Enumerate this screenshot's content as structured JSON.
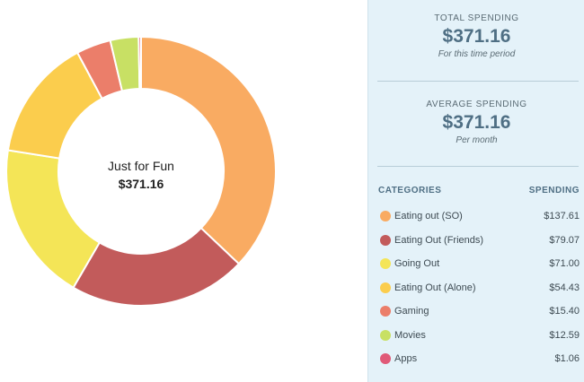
{
  "chart_data": {
    "type": "pie",
    "center_title": "Just for Fun",
    "center_value": "$371.16",
    "categories": [
      "Eating out (SO)",
      "Eating Out (Friends)",
      "Going Out",
      "Eating Out (Alone)",
      "Gaming",
      "Movies",
      "Apps"
    ],
    "values": [
      137.61,
      79.07,
      71.0,
      54.43,
      15.4,
      12.59,
      1.06
    ],
    "colors": [
      "#f9ab62",
      "#c25b5b",
      "#f4e557",
      "#fbcd4d",
      "#eb7e6a",
      "#c8e064",
      "#e05a78"
    ]
  },
  "summary": {
    "total_label": "TOTAL SPENDING",
    "total_value": "$371.16",
    "total_sub": "For this time period",
    "average_label": "AVERAGE SPENDING",
    "average_value": "$371.16",
    "average_sub": "Per month"
  },
  "list": {
    "header_categories": "CATEGORIES",
    "header_spending": "SPENDING",
    "items": [
      {
        "name": "Eating out (SO)",
        "amount": "$137.61",
        "color": "#f9ab62"
      },
      {
        "name": "Eating Out (Friends)",
        "amount": "$79.07",
        "color": "#c25b5b"
      },
      {
        "name": "Going Out",
        "amount": "$71.00",
        "color": "#f4e557"
      },
      {
        "name": "Eating Out (Alone)",
        "amount": "$54.43",
        "color": "#fbcd4d"
      },
      {
        "name": "Gaming",
        "amount": "$15.40",
        "color": "#eb7e6a"
      },
      {
        "name": "Movies",
        "amount": "$12.59",
        "color": "#c8e064"
      },
      {
        "name": "Apps",
        "amount": "$1.06",
        "color": "#e05a78"
      }
    ]
  }
}
